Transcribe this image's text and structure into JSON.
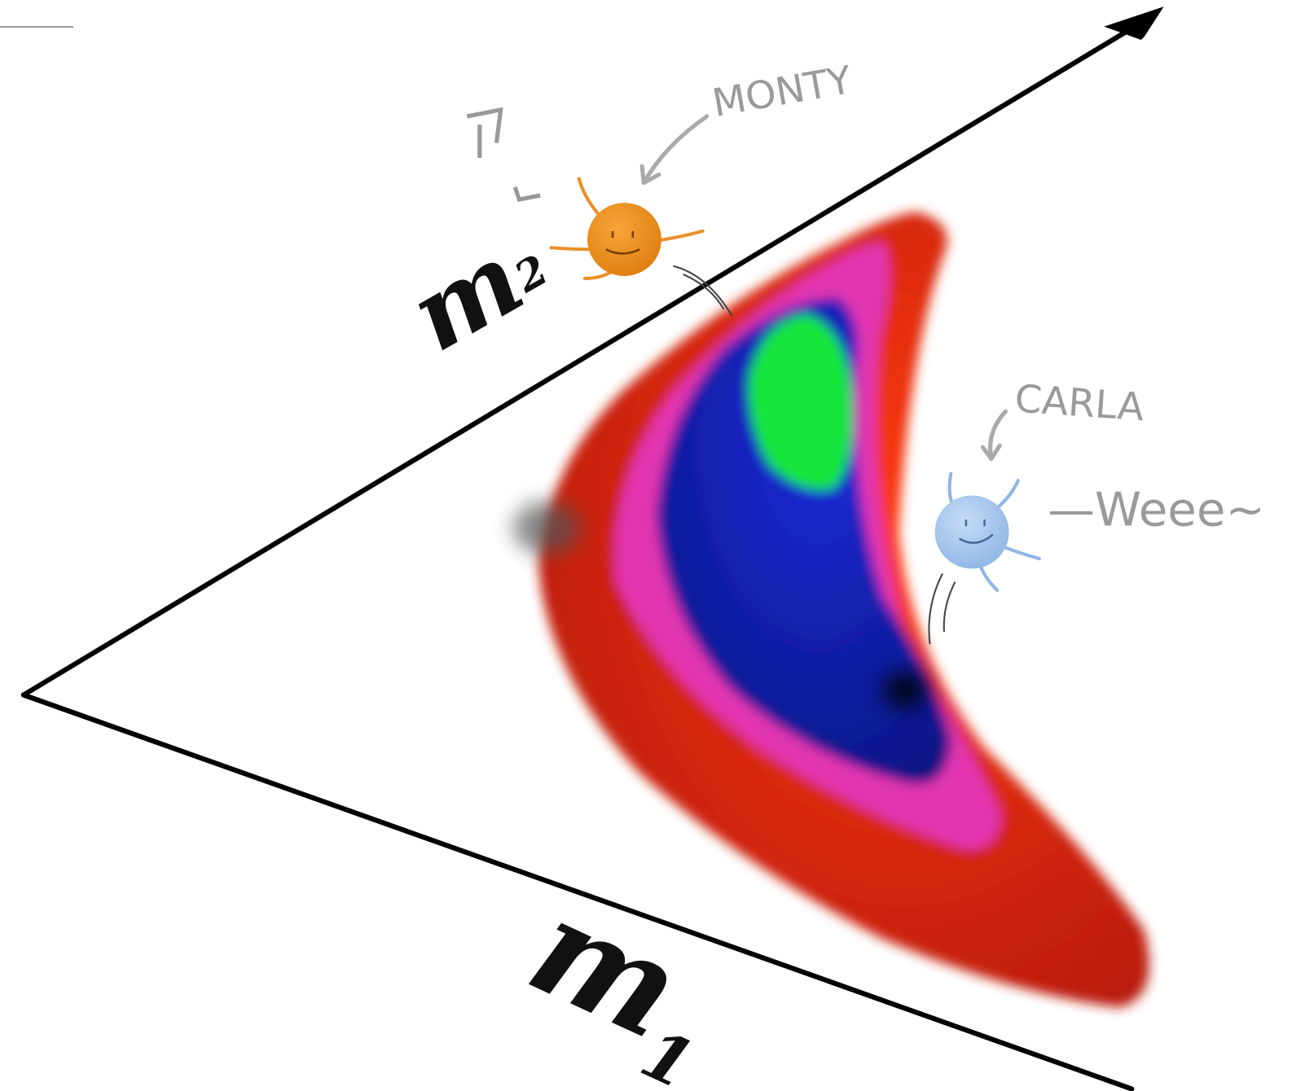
{
  "axes": {
    "m1": {
      "symbol": "m",
      "subscript": "1"
    },
    "m2": {
      "symbol": "m",
      "subscript": "2"
    }
  },
  "characters": [
    {
      "name": "MONTY"
    },
    {
      "name": "CARLA",
      "speech": "—Weee~"
    }
  ]
}
